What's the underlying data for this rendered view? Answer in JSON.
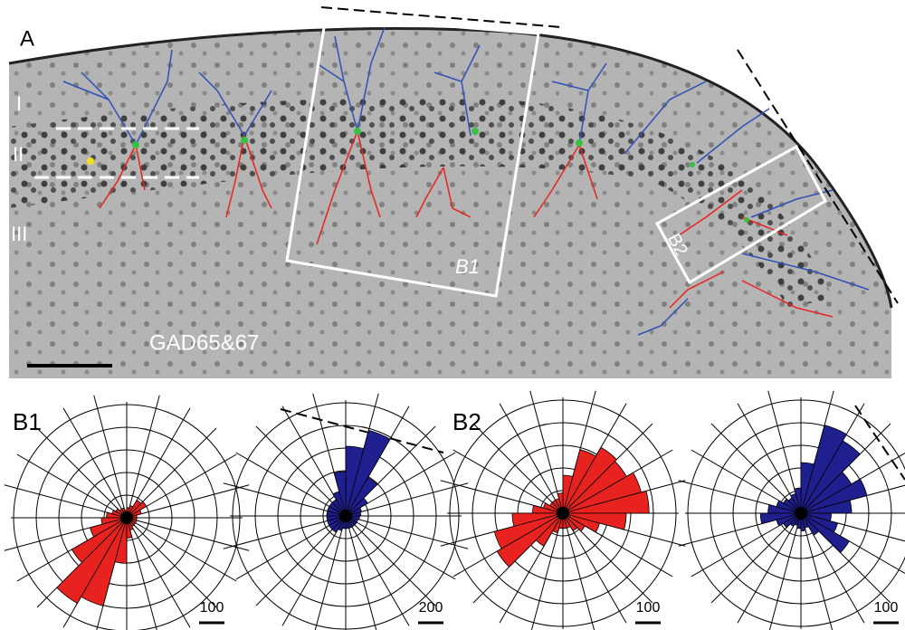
{
  "panel_a": {
    "label": "A",
    "layers": [
      "I",
      "II",
      "III"
    ],
    "stain": "GAD65&67",
    "boxes": [
      "B1",
      "B2"
    ]
  },
  "panel_b": {
    "labels": [
      "B1",
      "B2"
    ]
  },
  "chart_data": [
    {
      "type": "polar_bar",
      "color": "#e8231f",
      "theta": [
        7.5,
        22.5,
        37.5,
        52.5,
        67.5,
        82.5,
        97.5,
        112.5,
        127.5,
        142.5,
        157.5,
        172.5,
        187.5,
        202.5,
        217.5,
        232.5,
        247.5,
        262.5,
        277.5,
        292.5,
        307.5,
        322.5,
        337.5,
        352.5
      ],
      "values": [
        40,
        60,
        90,
        80,
        50,
        40,
        30,
        40,
        40,
        50,
        60,
        80,
        100,
        150,
        250,
        390,
        360,
        180,
        80,
        50,
        40,
        40,
        40,
        40
      ],
      "scale_bar": 100
    },
    {
      "type": "polar_bar",
      "color": "#1f1f8f",
      "theta": [
        7.5,
        22.5,
        37.5,
        52.5,
        67.5,
        82.5,
        97.5,
        112.5,
        127.5,
        142.5,
        157.5,
        172.5,
        187.5,
        202.5,
        217.5,
        232.5,
        247.5,
        262.5,
        277.5,
        292.5,
        307.5,
        322.5,
        337.5,
        352.5
      ],
      "values": [
        120,
        130,
        200,
        350,
        700,
        550,
        350,
        200,
        150,
        150,
        150,
        150,
        150,
        150,
        150,
        150,
        120,
        100,
        100,
        100,
        100,
        100,
        100,
        110
      ],
      "scale_bar": 200
    },
    {
      "type": "polar_bar",
      "color": "#e8231f",
      "theta": [
        7.5,
        22.5,
        37.5,
        52.5,
        67.5,
        82.5,
        97.5,
        112.5,
        127.5,
        142.5,
        157.5,
        172.5,
        187.5,
        202.5,
        217.5,
        232.5,
        247.5,
        262.5,
        277.5,
        292.5,
        307.5,
        322.5,
        337.5,
        352.5
      ],
      "values": [
        340,
        320,
        290,
        300,
        260,
        150,
        80,
        60,
        60,
        60,
        80,
        120,
        200,
        280,
        300,
        150,
        80,
        60,
        60,
        60,
        80,
        100,
        150,
        250
      ],
      "scale_bar": 100
    },
    {
      "type": "polar_bar",
      "color": "#1f1f8f",
      "theta": [
        7.5,
        22.5,
        37.5,
        52.5,
        67.5,
        82.5,
        97.5,
        112.5,
        127.5,
        142.5,
        157.5,
        172.5,
        187.5,
        202.5,
        217.5,
        232.5,
        247.5,
        262.5,
        277.5,
        292.5,
        307.5,
        322.5,
        337.5,
        352.5
      ],
      "values": [
        200,
        270,
        230,
        330,
        360,
        200,
        100,
        80,
        70,
        80,
        100,
        130,
        160,
        100,
        80,
        60,
        50,
        60,
        70,
        60,
        100,
        220,
        150,
        120
      ],
      "scale_bar": 100
    }
  ]
}
